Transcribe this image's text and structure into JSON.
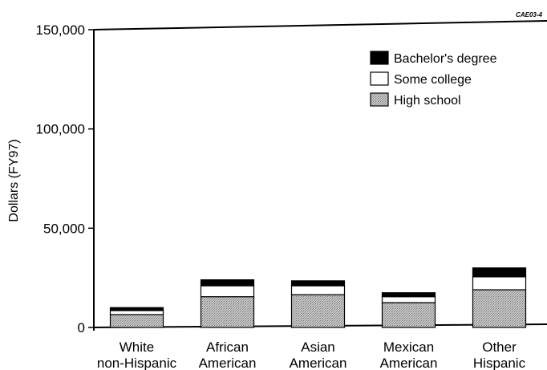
{
  "corner_code": "CAE03-4",
  "chart_data": {
    "type": "bar",
    "stacked": true,
    "title": "",
    "xlabel": "",
    "ylabel": "Dollars (FY97)",
    "ylim": [
      0,
      150000
    ],
    "yticks": [
      0,
      50000,
      100000,
      150000
    ],
    "ytick_labels": [
      "0",
      "50,000",
      "100,000",
      "150,000"
    ],
    "grid": false,
    "legend_position": "top-right",
    "categories": [
      [
        "White",
        "non-Hispanic"
      ],
      [
        "African",
        "American"
      ],
      [
        "Asian",
        "American"
      ],
      [
        "Mexican",
        "American"
      ],
      [
        "Other",
        "Hispanic"
      ]
    ],
    "series": [
      {
        "name": "High school",
        "color": "#b8b8b8",
        "pattern": "dots",
        "values": [
          6500,
          15500,
          16500,
          12500,
          19000
        ]
      },
      {
        "name": "Some college",
        "color": "#ffffff",
        "pattern": "none",
        "values": [
          2000,
          5500,
          4500,
          3000,
          6500
        ]
      },
      {
        "name": "Bachelor's degree",
        "color": "#000000",
        "pattern": "none",
        "values": [
          1500,
          3000,
          2500,
          2000,
          4500
        ]
      }
    ],
    "legend_order": [
      "Bachelor's degree",
      "Some college",
      "High school"
    ]
  }
}
